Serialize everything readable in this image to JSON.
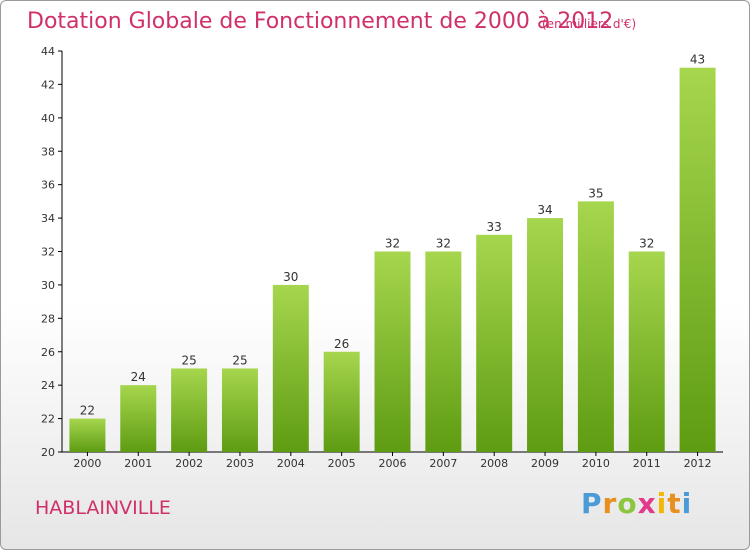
{
  "title": "Dotation Globale de Fonctionnement de 2000 à 2012",
  "subtitle": "(en milliers d'€)",
  "town": "HABLAINVILLE",
  "logo": {
    "letters": [
      "P",
      "r",
      "o",
      "x",
      "i",
      "t",
      "i"
    ],
    "colors": [
      "#4a9bd6",
      "#e8901f",
      "#8cc63f",
      "#e23a8a",
      "#f2b705",
      "#e8901f",
      "#4a9bd6"
    ]
  },
  "colors": {
    "title": "#d0306a",
    "bar_top": "#a6d64e",
    "bar_bottom": "#5e9c12",
    "axis": "#000000",
    "grid": "#d0d0d0"
  },
  "chart_data": {
    "type": "bar",
    "title": "Dotation Globale de Fonctionnement de 2000 à 2012",
    "subtitle": "(en milliers d'€)",
    "categories": [
      "2000",
      "2001",
      "2002",
      "2003",
      "2004",
      "2005",
      "2006",
      "2007",
      "2008",
      "2009",
      "2010",
      "2011",
      "2012"
    ],
    "values": [
      22,
      24,
      25,
      25,
      30,
      26,
      32,
      32,
      33,
      34,
      35,
      32,
      43
    ],
    "ylim": [
      20,
      44
    ],
    "yticks": [
      20,
      22,
      24,
      26,
      28,
      30,
      32,
      34,
      36,
      38,
      40,
      42,
      44
    ],
    "xlabel": "",
    "ylabel": "",
    "grid": false,
    "data_labels": true
  }
}
